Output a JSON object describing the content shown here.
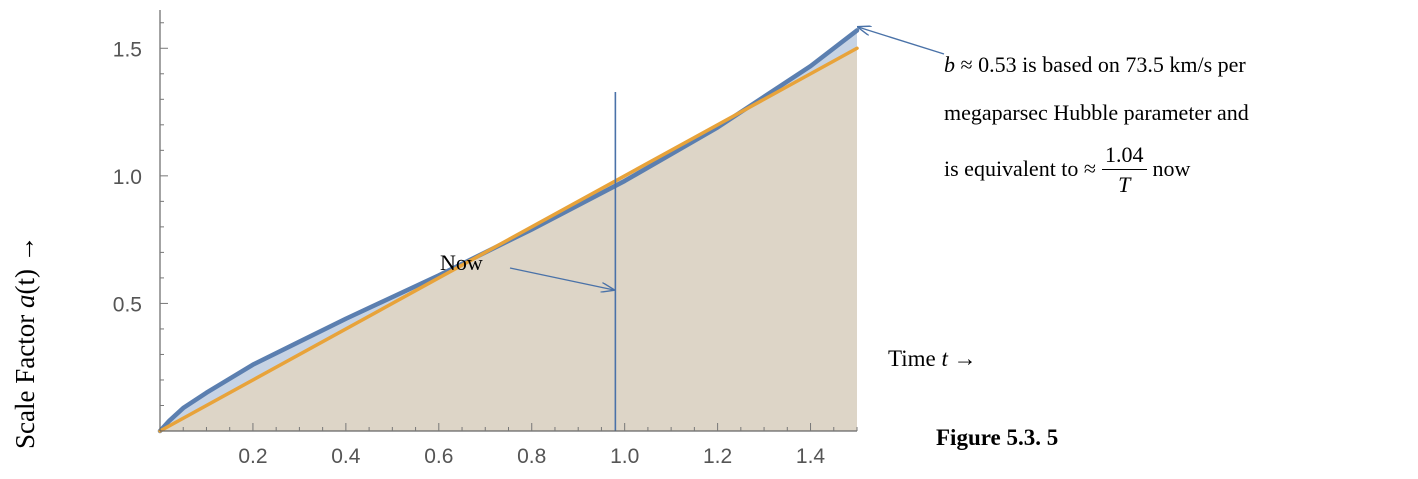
{
  "chart_data": {
    "type": "area",
    "x_domain": [
      0,
      1.5
    ],
    "y_domain": [
      0,
      1.65
    ],
    "xticks": [
      0.2,
      0.4,
      0.6,
      0.8,
      1.0,
      1.2,
      1.4
    ],
    "yticks": [
      0.5,
      1.0,
      1.5
    ],
    "xtick_labels": [
      "0.2",
      "0.4",
      "0.6",
      "0.8",
      "1.0",
      "1.2",
      "1.4"
    ],
    "ytick_labels": [
      "0.5",
      "1.0",
      "1.5"
    ],
    "ylabel_prefix": "Scale Factor ",
    "ylabel_var": "a",
    "ylabel_paren": "(t)",
    "ylabel_arrow": " →",
    "xlabel_prefix": "Time ",
    "xlabel_var": "t",
    "xlabel_arrow": " →",
    "series": [
      {
        "color": "#5b7fb0",
        "fill": "#c6d3e4",
        "x": [
          0,
          0.02,
          0.05,
          0.1,
          0.2,
          0.3,
          0.4,
          0.6,
          0.8,
          1.0,
          1.2,
          1.4,
          1.5
        ],
        "y": [
          0,
          0.04,
          0.09,
          0.15,
          0.26,
          0.35,
          0.44,
          0.61,
          0.79,
          0.98,
          1.19,
          1.43,
          1.57
        ]
      },
      {
        "color": "#e8a33a",
        "fill": "#ddd5c7",
        "x": [
          0,
          1.5
        ],
        "y": [
          0,
          1.5
        ]
      }
    ],
    "now_line_x": 0.98
  },
  "annotations": {
    "now_label": "Now",
    "b_var": "b",
    "b_line1_rest": " ≈ 0.53 is based on 73.5 km/s per",
    "b_line2": "megaparsec Hubble parameter and",
    "b_line3_prefix": "is equivalent to ≈",
    "frac_num": "1.04",
    "frac_den": "T",
    "b_line3_suffix": "now",
    "figure_caption": "Figure 5.3. 5"
  }
}
